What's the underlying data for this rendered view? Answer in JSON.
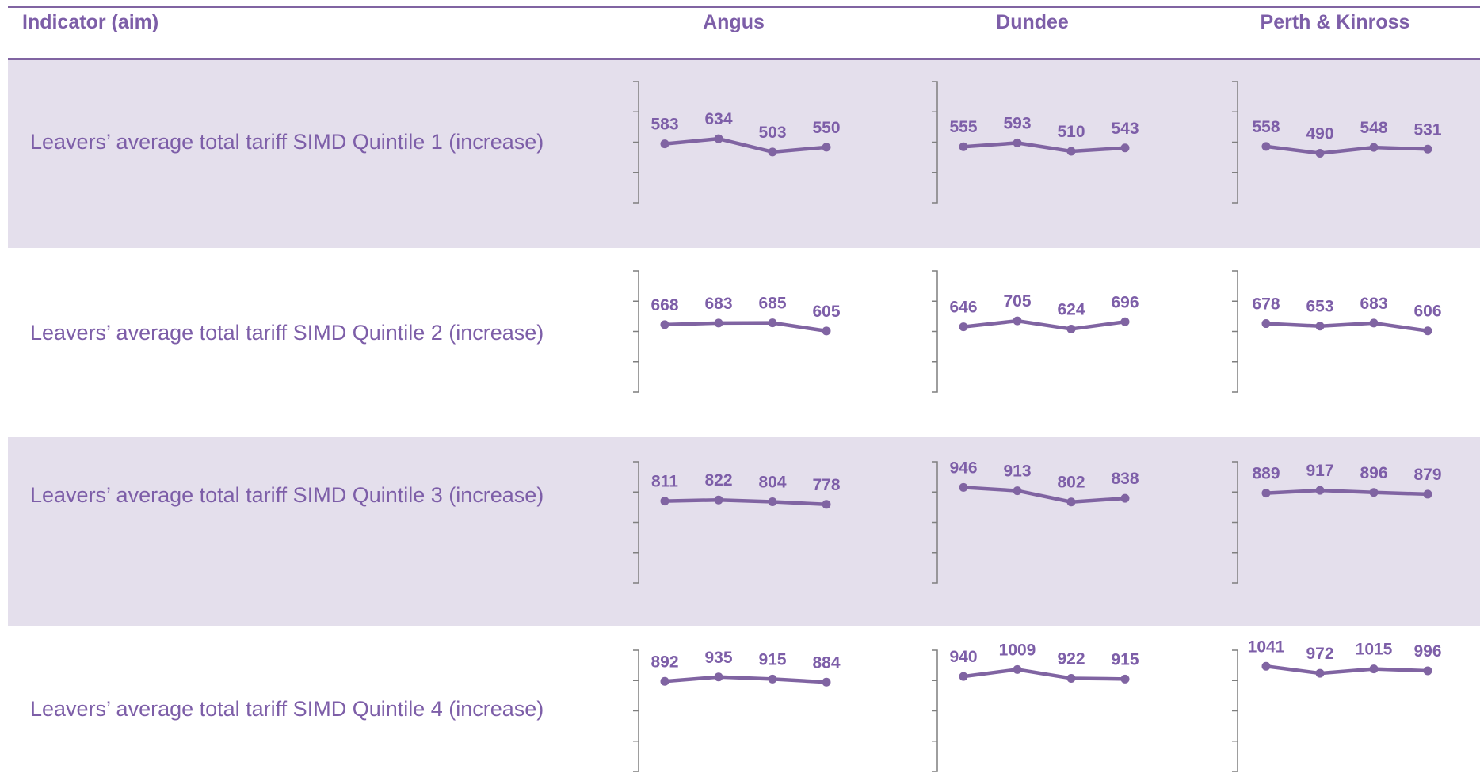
{
  "table": {
    "header": {
      "indicator": "Indicator (aim)",
      "areas": [
        "Angus",
        "Dundee",
        "Perth & Kinross"
      ]
    },
    "colors": {
      "line": "#8064a2",
      "text": "#7d5ea8",
      "shade": "#e4dfec"
    }
  },
  "chart_data": [
    {
      "type": "line",
      "indicator": "Leavers’ average total tariff SIMD Quintile 1 (increase)",
      "area": "Angus",
      "values": [
        583,
        634,
        503,
        550
      ]
    },
    {
      "type": "line",
      "indicator": "Leavers’ average total tariff SIMD Quintile 1 (increase)",
      "area": "Dundee",
      "values": [
        555,
        593,
        510,
        543
      ]
    },
    {
      "type": "line",
      "indicator": "Leavers’ average total tariff SIMD Quintile 1 (increase)",
      "area": "Perth & Kinross",
      "values": [
        558,
        490,
        548,
        531
      ]
    },
    {
      "type": "line",
      "indicator": "Leavers’ average total tariff SIMD Quintile 2 (increase)",
      "area": "Angus",
      "values": [
        668,
        683,
        685,
        605
      ]
    },
    {
      "type": "line",
      "indicator": "Leavers’ average total tariff SIMD Quintile 2 (increase)",
      "area": "Dundee",
      "values": [
        646,
        705,
        624,
        696
      ]
    },
    {
      "type": "line",
      "indicator": "Leavers’ average total tariff SIMD Quintile 2 (increase)",
      "area": "Perth & Kinross",
      "values": [
        678,
        653,
        683,
        606
      ]
    },
    {
      "type": "line",
      "indicator": "Leavers’ average total tariff SIMD Quintile 3 (increase)",
      "area": "Angus",
      "values": [
        811,
        822,
        804,
        778
      ]
    },
    {
      "type": "line",
      "indicator": "Leavers’ average total tariff SIMD Quintile 3 (increase)",
      "area": "Dundee",
      "values": [
        946,
        913,
        802,
        838
      ]
    },
    {
      "type": "line",
      "indicator": "Leavers’ average total tariff SIMD Quintile 3 (increase)",
      "area": "Perth & Kinross",
      "values": [
        889,
        917,
        896,
        879
      ]
    },
    {
      "type": "line",
      "indicator": "Leavers’ average total tariff SIMD Quintile 4 (increase)",
      "area": "Angus",
      "values": [
        892,
        935,
        915,
        884
      ]
    },
    {
      "type": "line",
      "indicator": "Leavers’ average total tariff SIMD Quintile 4 (increase)",
      "area": "Dundee",
      "values": [
        940,
        1009,
        922,
        915
      ]
    },
    {
      "type": "line",
      "indicator": "Leavers’ average total tariff SIMD Quintile 4 (increase)",
      "area": "Perth & Kinross",
      "values": [
        1041,
        972,
        1015,
        996
      ]
    }
  ]
}
